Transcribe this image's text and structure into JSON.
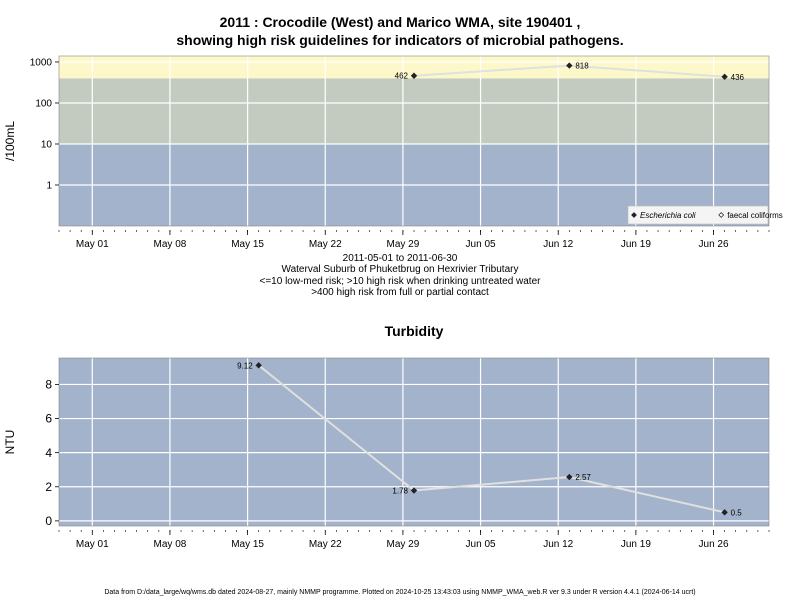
{
  "page": {
    "title_line1": "2011 : Crocodile (West) and Marico WMA, site 190401 ,",
    "title_line2": "showing high risk guidelines for indicators of microbial pathogens.",
    "subtitle_lines": [
      "2011-05-01 to 2011-06-30",
      "Waterval Suburb of Phuketbrug on Hexrivier Tributary",
      "<=10 low-med risk; >10 high risk when drinking untreated water",
      ">400 high risk from full or partial contact"
    ],
    "footer": "Data from D:/data_large/wq/wms.db dated 2024-08-27, mainly NMMP programme. Plotted on 2024-10-25 13:43:03 using NMMP_WMA_web.R ver 9.3 under R version 4.4.1 (2024-06-14 ucrt)"
  },
  "colors": {
    "band_low": "#a2b3cb",
    "band_mid": "#c3cbc1",
    "band_high": "#fdf8c9",
    "line": "#e0e0e0",
    "grid": "#ffffff",
    "marker": "#222222"
  },
  "chart_data": [
    {
      "type": "line",
      "title": "",
      "xlabel": "",
      "ylabel": "/100mL",
      "yscale": "log",
      "ylim": [
        0.1,
        1400
      ],
      "yticks": [
        1,
        10,
        100,
        1000
      ],
      "ytick_labels": [
        "1",
        "10",
        "100",
        "1000"
      ],
      "xlim": [
        "2011-04-28",
        "2011-07-01"
      ],
      "xticks": [
        "2011-05-01",
        "2011-05-08",
        "2011-05-15",
        "2011-05-22",
        "2011-05-29",
        "2011-06-05",
        "2011-06-12",
        "2011-06-19",
        "2011-06-26"
      ],
      "xtick_labels": [
        "May 01",
        "May 08",
        "May 15",
        "May 22",
        "May 29",
        "Jun 05",
        "Jun 12",
        "Jun 19",
        "Jun 26"
      ],
      "bands": [
        {
          "from": 0.1,
          "to": 10,
          "color": "#a2b3cb"
        },
        {
          "from": 10,
          "to": 400,
          "color": "#c3cbc1"
        },
        {
          "from": 400,
          "to": 1400,
          "color": "#fdf8c9"
        }
      ],
      "series": [
        {
          "name": "Escherichia coli",
          "marker": "filled-diamond",
          "x": [
            "2011-05-30",
            "2011-06-13",
            "2011-06-27"
          ],
          "y": [
            462,
            818,
            436
          ],
          "labels": [
            "462",
            "818",
            "436"
          ],
          "label_side": [
            "left",
            "right",
            "right"
          ]
        }
      ],
      "legend": {
        "position": "bottom-right",
        "entries": [
          {
            "label": "Escherichia coli",
            "marker": "filled-diamond",
            "italic": true
          },
          {
            "label": "faecal coliforms",
            "marker": "open-diamond",
            "italic": false
          }
        ]
      },
      "grid": true
    },
    {
      "type": "line",
      "title": "Turbidity",
      "xlabel": "",
      "ylabel": "NTU",
      "yscale": "linear",
      "ylim": [
        -0.3,
        9.55
      ],
      "yticks": [
        0,
        2,
        4,
        6,
        8
      ],
      "ytick_labels": [
        "0",
        "2",
        "4",
        "6",
        "8"
      ],
      "xlim": [
        "2011-04-28",
        "2011-07-01"
      ],
      "xticks": [
        "2011-05-01",
        "2011-05-08",
        "2011-05-15",
        "2011-05-22",
        "2011-05-29",
        "2011-06-05",
        "2011-06-12",
        "2011-06-19",
        "2011-06-26"
      ],
      "xtick_labels": [
        "May 01",
        "May 08",
        "May 15",
        "May 22",
        "May 29",
        "Jun 05",
        "Jun 12",
        "Jun 19",
        "Jun 26"
      ],
      "bands": [
        {
          "from": -0.3,
          "to": 9.55,
          "color": "#a2b3cb"
        }
      ],
      "series": [
        {
          "name": "",
          "marker": "filled-diamond",
          "x": [
            "2011-05-16",
            "2011-05-30",
            "2011-06-13",
            "2011-06-27"
          ],
          "y": [
            9.12,
            1.78,
            2.57,
            0.5
          ],
          "labels": [
            "9.12",
            "1.78",
            "2.57",
            "0.5"
          ],
          "label_side": [
            "left",
            "left",
            "right",
            "right"
          ]
        }
      ],
      "grid": true
    }
  ]
}
